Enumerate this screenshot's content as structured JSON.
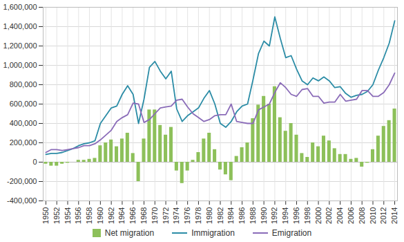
{
  "chart_data": {
    "type": "line",
    "x": [
      1950,
      1951,
      1952,
      1953,
      1954,
      1955,
      1956,
      1957,
      1958,
      1959,
      1960,
      1961,
      1962,
      1963,
      1964,
      1965,
      1966,
      1967,
      1968,
      1969,
      1970,
      1971,
      1972,
      1973,
      1974,
      1975,
      1976,
      1977,
      1978,
      1979,
      1980,
      1981,
      1982,
      1983,
      1984,
      1985,
      1986,
      1987,
      1988,
      1989,
      1990,
      1991,
      1992,
      1993,
      1994,
      1995,
      1996,
      1997,
      1998,
      1999,
      2000,
      2001,
      2002,
      2003,
      2004,
      2005,
      2006,
      2007,
      2008,
      2009,
      2010,
      2011,
      2012,
      2013,
      2014
    ],
    "xlim": [
      1949.5,
      2014.5
    ],
    "xticks": [
      1950,
      1952,
      1954,
      1956,
      1958,
      1960,
      1962,
      1964,
      1966,
      1968,
      1970,
      1972,
      1974,
      1976,
      1978,
      1980,
      1982,
      1984,
      1986,
      1988,
      1990,
      1992,
      1994,
      1996,
      1998,
      2000,
      2002,
      2004,
      2006,
      2008,
      2010,
      2012,
      2014
    ],
    "ylim": [
      -400000,
      1600000
    ],
    "yticks": [
      {
        "value": -400000,
        "label": "-400,000"
      },
      {
        "value": -200000,
        "label": "-200,000"
      },
      0,
      {
        "value": 200000,
        "label": "200,000"
      },
      {
        "value": 400000,
        "label": "400,000"
      },
      {
        "value": 600000,
        "label": "600,000"
      },
      {
        "value": 800000,
        "label": "800,000"
      },
      {
        "value": 1000000,
        "label": "1,000,000"
      },
      {
        "value": 1200000,
        "label": "1,200,000"
      },
      {
        "value": 1400000,
        "label": "1,400,000"
      },
      {
        "value": 1600000,
        "label": "1,600,000"
      }
    ],
    "grid": true,
    "legend": "bottom",
    "series": [
      {
        "name": "Net migration",
        "type": "bar",
        "color": "#8dc05a",
        "values": [
          -20000,
          -40000,
          -40000,
          -20000,
          -10000,
          0,
          20000,
          20000,
          30000,
          40000,
          170000,
          200000,
          230000,
          160000,
          240000,
          300000,
          90000,
          -200000,
          240000,
          540000,
          540000,
          380000,
          280000,
          360000,
          -90000,
          -220000,
          -90000,
          20000,
          100000,
          240000,
          300000,
          130000,
          -80000,
          -130000,
          -190000,
          60000,
          150000,
          200000,
          450000,
          590000,
          680000,
          600000,
          780000,
          460000,
          320000,
          400000,
          280000,
          90000,
          50000,
          200000,
          160000,
          270000,
          220000,
          140000,
          80000,
          80000,
          30000,
          40000,
          -50000,
          -10000,
          130000,
          270000,
          370000,
          430000,
          550000
        ]
      },
      {
        "name": "Immigration",
        "type": "line",
        "color": "#2b8ca6",
        "values": [
          80000,
          90000,
          90000,
          100000,
          120000,
          140000,
          170000,
          190000,
          200000,
          220000,
          400000,
          480000,
          560000,
          580000,
          700000,
          790000,
          700000,
          400000,
          650000,
          980000,
          1040000,
          940000,
          860000,
          940000,
          550000,
          420000,
          480000,
          520000,
          560000,
          660000,
          740000,
          600000,
          400000,
          360000,
          420000,
          520000,
          580000,
          600000,
          850000,
          1120000,
          1250000,
          1200000,
          1500000,
          1280000,
          1080000,
          1100000,
          960000,
          840000,
          800000,
          870000,
          840000,
          880000,
          840000,
          770000,
          780000,
          710000,
          670000,
          690000,
          700000,
          730000,
          800000,
          950000,
          1080000,
          1230000,
          1460000
        ]
      },
      {
        "name": "Emigration",
        "type": "line",
        "color": "#8a6bb8",
        "values": [
          100000,
          130000,
          130000,
          120000,
          130000,
          140000,
          150000,
          170000,
          170000,
          190000,
          230000,
          280000,
          330000,
          420000,
          460000,
          490000,
          610000,
          600000,
          410000,
          440000,
          500000,
          560000,
          570000,
          580000,
          640000,
          650000,
          570000,
          500000,
          460000,
          420000,
          440000,
          480000,
          490000,
          490000,
          600000,
          420000,
          410000,
          400000,
          400000,
          540000,
          570000,
          600000,
          720000,
          820000,
          770000,
          700000,
          680000,
          750000,
          760000,
          680000,
          680000,
          610000,
          620000,
          620000,
          700000,
          630000,
          640000,
          650000,
          740000,
          740000,
          680000,
          680000,
          720000,
          800000,
          920000
        ]
      }
    ]
  }
}
